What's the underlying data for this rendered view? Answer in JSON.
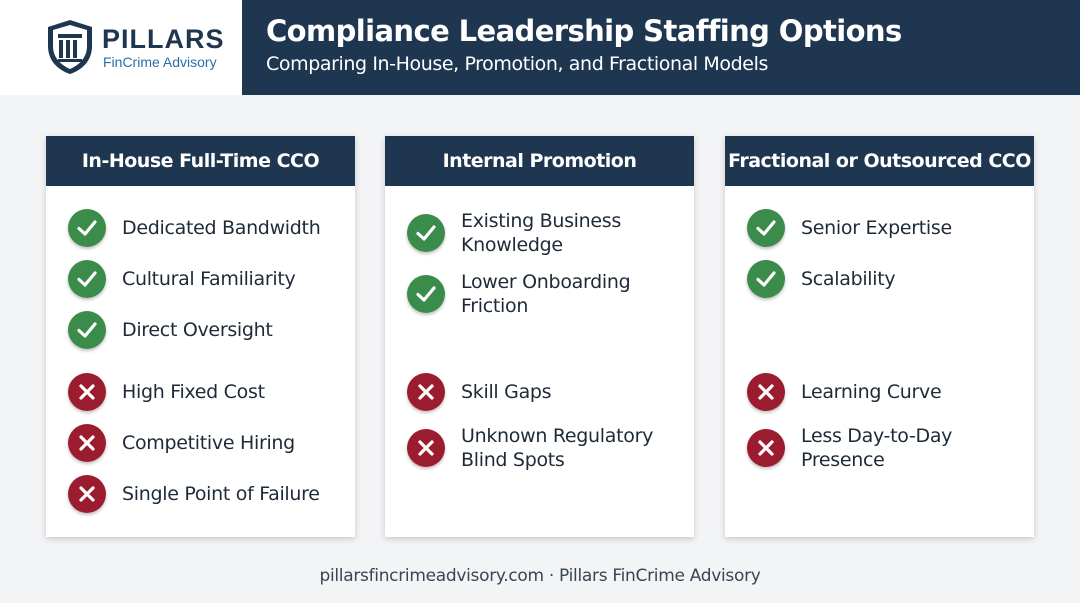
{
  "logo": {
    "name": "PILLARS",
    "tagline": "FinCrime Advisory"
  },
  "header": {
    "title": "Compliance Leadership Staffing Options",
    "subtitle": "Comparing In-House, Promotion, and Fractional Models"
  },
  "columns": [
    {
      "title": "In-House Full-Time CCO",
      "pros": [
        "Dedicated Bandwidth",
        "Cultural Familiarity",
        "Direct Oversight"
      ],
      "cons": [
        "High Fixed Cost",
        "Competitive Hiring",
        "Single Point of Failure"
      ]
    },
    {
      "title": "Internal Promotion",
      "pros": [
        "Existing Business Knowledge",
        "Lower Onboarding Friction"
      ],
      "cons": [
        "Skill Gaps",
        "Unknown Regulatory Blind Spots"
      ]
    },
    {
      "title": "Fractional or Outsourced CCO",
      "pros": [
        "Senior Expertise",
        "Scalability"
      ],
      "cons": [
        "Learning Curve",
        "Less Day-to-Day Presence"
      ]
    }
  ],
  "footer": "pillarsfincrimeadvisory.com · Pillars FinCrime Advisory"
}
